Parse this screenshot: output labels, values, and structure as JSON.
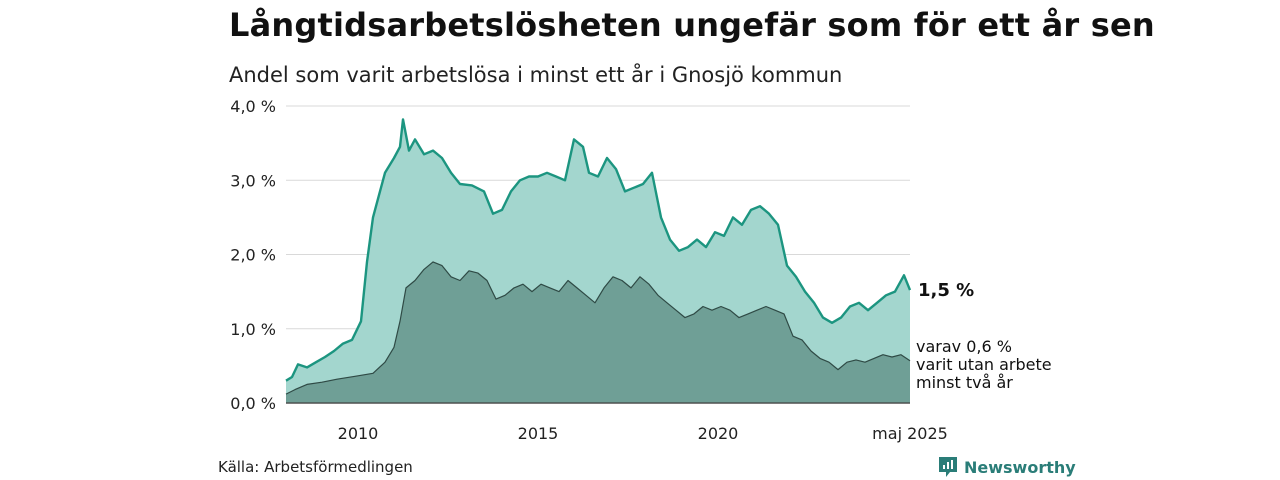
{
  "header": {
    "title": "Långtidsarbetslösheten ungefär som för ett år sen",
    "subtitle": "Andel som varit arbetslösa i minst ett år i Gnosjö kommun"
  },
  "footer": {
    "source": "Källa: Arbetsförmedlingen",
    "brand": "Newsworthy"
  },
  "colors": {
    "total_fill": "#a3d6ce",
    "total_line": "#1c9580",
    "long_fill": "#6f9f96",
    "long_line": "#2f4a45",
    "grid": "#d9d9d9",
    "brand": "#2a7d78"
  },
  "chart_data": {
    "type": "area",
    "x_start": "2008-01",
    "x_end": "2025-05",
    "y_unit": "%",
    "ylim": [
      0,
      4
    ],
    "y_ticks": [
      0,
      1,
      2,
      3,
      4
    ],
    "y_tick_labels": [
      "0,0 %",
      "1,0 %",
      "2,0 %",
      "3,0 %",
      "4,0 %"
    ],
    "x_ticks": [
      "2010-01",
      "2015-01",
      "2020-01",
      "2025-05"
    ],
    "x_tick_labels": [
      "2010",
      "2015",
      "2020",
      "maj 2025"
    ],
    "grid": true,
    "series": [
      {
        "key": "total",
        "label_lines": [
          "1,5 %"
        ],
        "points": [
          [
            "2008-01",
            0.3
          ],
          [
            "2008-03",
            0.35
          ],
          [
            "2008-05",
            0.52
          ],
          [
            "2008-08",
            0.48
          ],
          [
            "2008-11",
            0.55
          ],
          [
            "2009-02",
            0.62
          ],
          [
            "2009-05",
            0.7
          ],
          [
            "2009-08",
            0.8
          ],
          [
            "2009-11",
            0.85
          ],
          [
            "2010-02",
            1.1
          ],
          [
            "2010-04",
            1.9
          ],
          [
            "2010-06",
            2.5
          ],
          [
            "2010-08",
            2.8
          ],
          [
            "2010-10",
            3.1
          ],
          [
            "2011-01",
            3.3
          ],
          [
            "2011-03",
            3.45
          ],
          [
            "2011-04",
            3.82
          ],
          [
            "2011-06",
            3.4
          ],
          [
            "2011-08",
            3.55
          ],
          [
            "2011-11",
            3.35
          ],
          [
            "2012-02",
            3.4
          ],
          [
            "2012-05",
            3.3
          ],
          [
            "2012-08",
            3.1
          ],
          [
            "2012-11",
            2.95
          ],
          [
            "2013-03",
            2.93
          ],
          [
            "2013-07",
            2.85
          ],
          [
            "2013-10",
            2.55
          ],
          [
            "2014-01",
            2.6
          ],
          [
            "2014-04",
            2.85
          ],
          [
            "2014-07",
            3.0
          ],
          [
            "2014-10",
            3.05
          ],
          [
            "2015-01",
            3.05
          ],
          [
            "2015-04",
            3.1
          ],
          [
            "2015-07",
            3.05
          ],
          [
            "2015-10",
            3.0
          ],
          [
            "2016-01",
            3.55
          ],
          [
            "2016-04",
            3.45
          ],
          [
            "2016-06",
            3.1
          ],
          [
            "2016-09",
            3.05
          ],
          [
            "2016-12",
            3.3
          ],
          [
            "2017-03",
            3.15
          ],
          [
            "2017-06",
            2.85
          ],
          [
            "2017-09",
            2.9
          ],
          [
            "2017-12",
            2.95
          ],
          [
            "2018-03",
            3.1
          ],
          [
            "2018-06",
            2.5
          ],
          [
            "2018-09",
            2.2
          ],
          [
            "2018-12",
            2.05
          ],
          [
            "2019-03",
            2.1
          ],
          [
            "2019-06",
            2.2
          ],
          [
            "2019-09",
            2.1
          ],
          [
            "2019-12",
            2.3
          ],
          [
            "2020-03",
            2.25
          ],
          [
            "2020-06",
            2.5
          ],
          [
            "2020-09",
            2.4
          ],
          [
            "2020-12",
            2.6
          ],
          [
            "2021-03",
            2.65
          ],
          [
            "2021-06",
            2.55
          ],
          [
            "2021-09",
            2.4
          ],
          [
            "2021-12",
            1.85
          ],
          [
            "2022-03",
            1.7
          ],
          [
            "2022-06",
            1.5
          ],
          [
            "2022-09",
            1.35
          ],
          [
            "2022-12",
            1.15
          ],
          [
            "2023-03",
            1.08
          ],
          [
            "2023-06",
            1.15
          ],
          [
            "2023-09",
            1.3
          ],
          [
            "2023-12",
            1.35
          ],
          [
            "2024-03",
            1.25
          ],
          [
            "2024-06",
            1.35
          ],
          [
            "2024-09",
            1.45
          ],
          [
            "2024-12",
            1.5
          ],
          [
            "2025-03",
            1.72
          ],
          [
            "2025-05",
            1.52
          ]
        ]
      },
      {
        "key": "long",
        "label_lines": [
          "varav 0,6 %",
          "varit utan arbete",
          "minst två år"
        ],
        "points": [
          [
            "2008-01",
            0.12
          ],
          [
            "2008-04",
            0.18
          ],
          [
            "2008-08",
            0.25
          ],
          [
            "2009-01",
            0.28
          ],
          [
            "2009-06",
            0.32
          ],
          [
            "2009-12",
            0.36
          ],
          [
            "2010-06",
            0.4
          ],
          [
            "2010-10",
            0.55
          ],
          [
            "2011-01",
            0.75
          ],
          [
            "2011-03",
            1.1
          ],
          [
            "2011-05",
            1.55
          ],
          [
            "2011-08",
            1.65
          ],
          [
            "2011-11",
            1.8
          ],
          [
            "2012-02",
            1.9
          ],
          [
            "2012-05",
            1.85
          ],
          [
            "2012-08",
            1.7
          ],
          [
            "2012-11",
            1.65
          ],
          [
            "2013-02",
            1.78
          ],
          [
            "2013-05",
            1.75
          ],
          [
            "2013-08",
            1.65
          ],
          [
            "2013-11",
            1.4
          ],
          [
            "2014-02",
            1.45
          ],
          [
            "2014-05",
            1.55
          ],
          [
            "2014-08",
            1.6
          ],
          [
            "2014-11",
            1.5
          ],
          [
            "2015-02",
            1.6
          ],
          [
            "2015-05",
            1.55
          ],
          [
            "2015-08",
            1.5
          ],
          [
            "2015-11",
            1.65
          ],
          [
            "2016-02",
            1.55
          ],
          [
            "2016-05",
            1.45
          ],
          [
            "2016-08",
            1.35
          ],
          [
            "2016-11",
            1.55
          ],
          [
            "2017-02",
            1.7
          ],
          [
            "2017-05",
            1.65
          ],
          [
            "2017-08",
            1.55
          ],
          [
            "2017-11",
            1.7
          ],
          [
            "2018-02",
            1.6
          ],
          [
            "2018-05",
            1.45
          ],
          [
            "2018-08",
            1.35
          ],
          [
            "2018-11",
            1.25
          ],
          [
            "2019-02",
            1.15
          ],
          [
            "2019-05",
            1.2
          ],
          [
            "2019-08",
            1.3
          ],
          [
            "2019-11",
            1.25
          ],
          [
            "2020-02",
            1.3
          ],
          [
            "2020-05",
            1.25
          ],
          [
            "2020-08",
            1.15
          ],
          [
            "2020-11",
            1.2
          ],
          [
            "2021-02",
            1.25
          ],
          [
            "2021-05",
            1.3
          ],
          [
            "2021-08",
            1.25
          ],
          [
            "2021-11",
            1.2
          ],
          [
            "2022-02",
            0.9
          ],
          [
            "2022-05",
            0.85
          ],
          [
            "2022-08",
            0.7
          ],
          [
            "2022-11",
            0.6
          ],
          [
            "2023-02",
            0.55
          ],
          [
            "2023-05",
            0.45
          ],
          [
            "2023-08",
            0.55
          ],
          [
            "2023-11",
            0.58
          ],
          [
            "2024-02",
            0.55
          ],
          [
            "2024-05",
            0.6
          ],
          [
            "2024-08",
            0.65
          ],
          [
            "2024-11",
            0.62
          ],
          [
            "2025-02",
            0.65
          ],
          [
            "2025-05",
            0.57
          ]
        ]
      }
    ]
  }
}
